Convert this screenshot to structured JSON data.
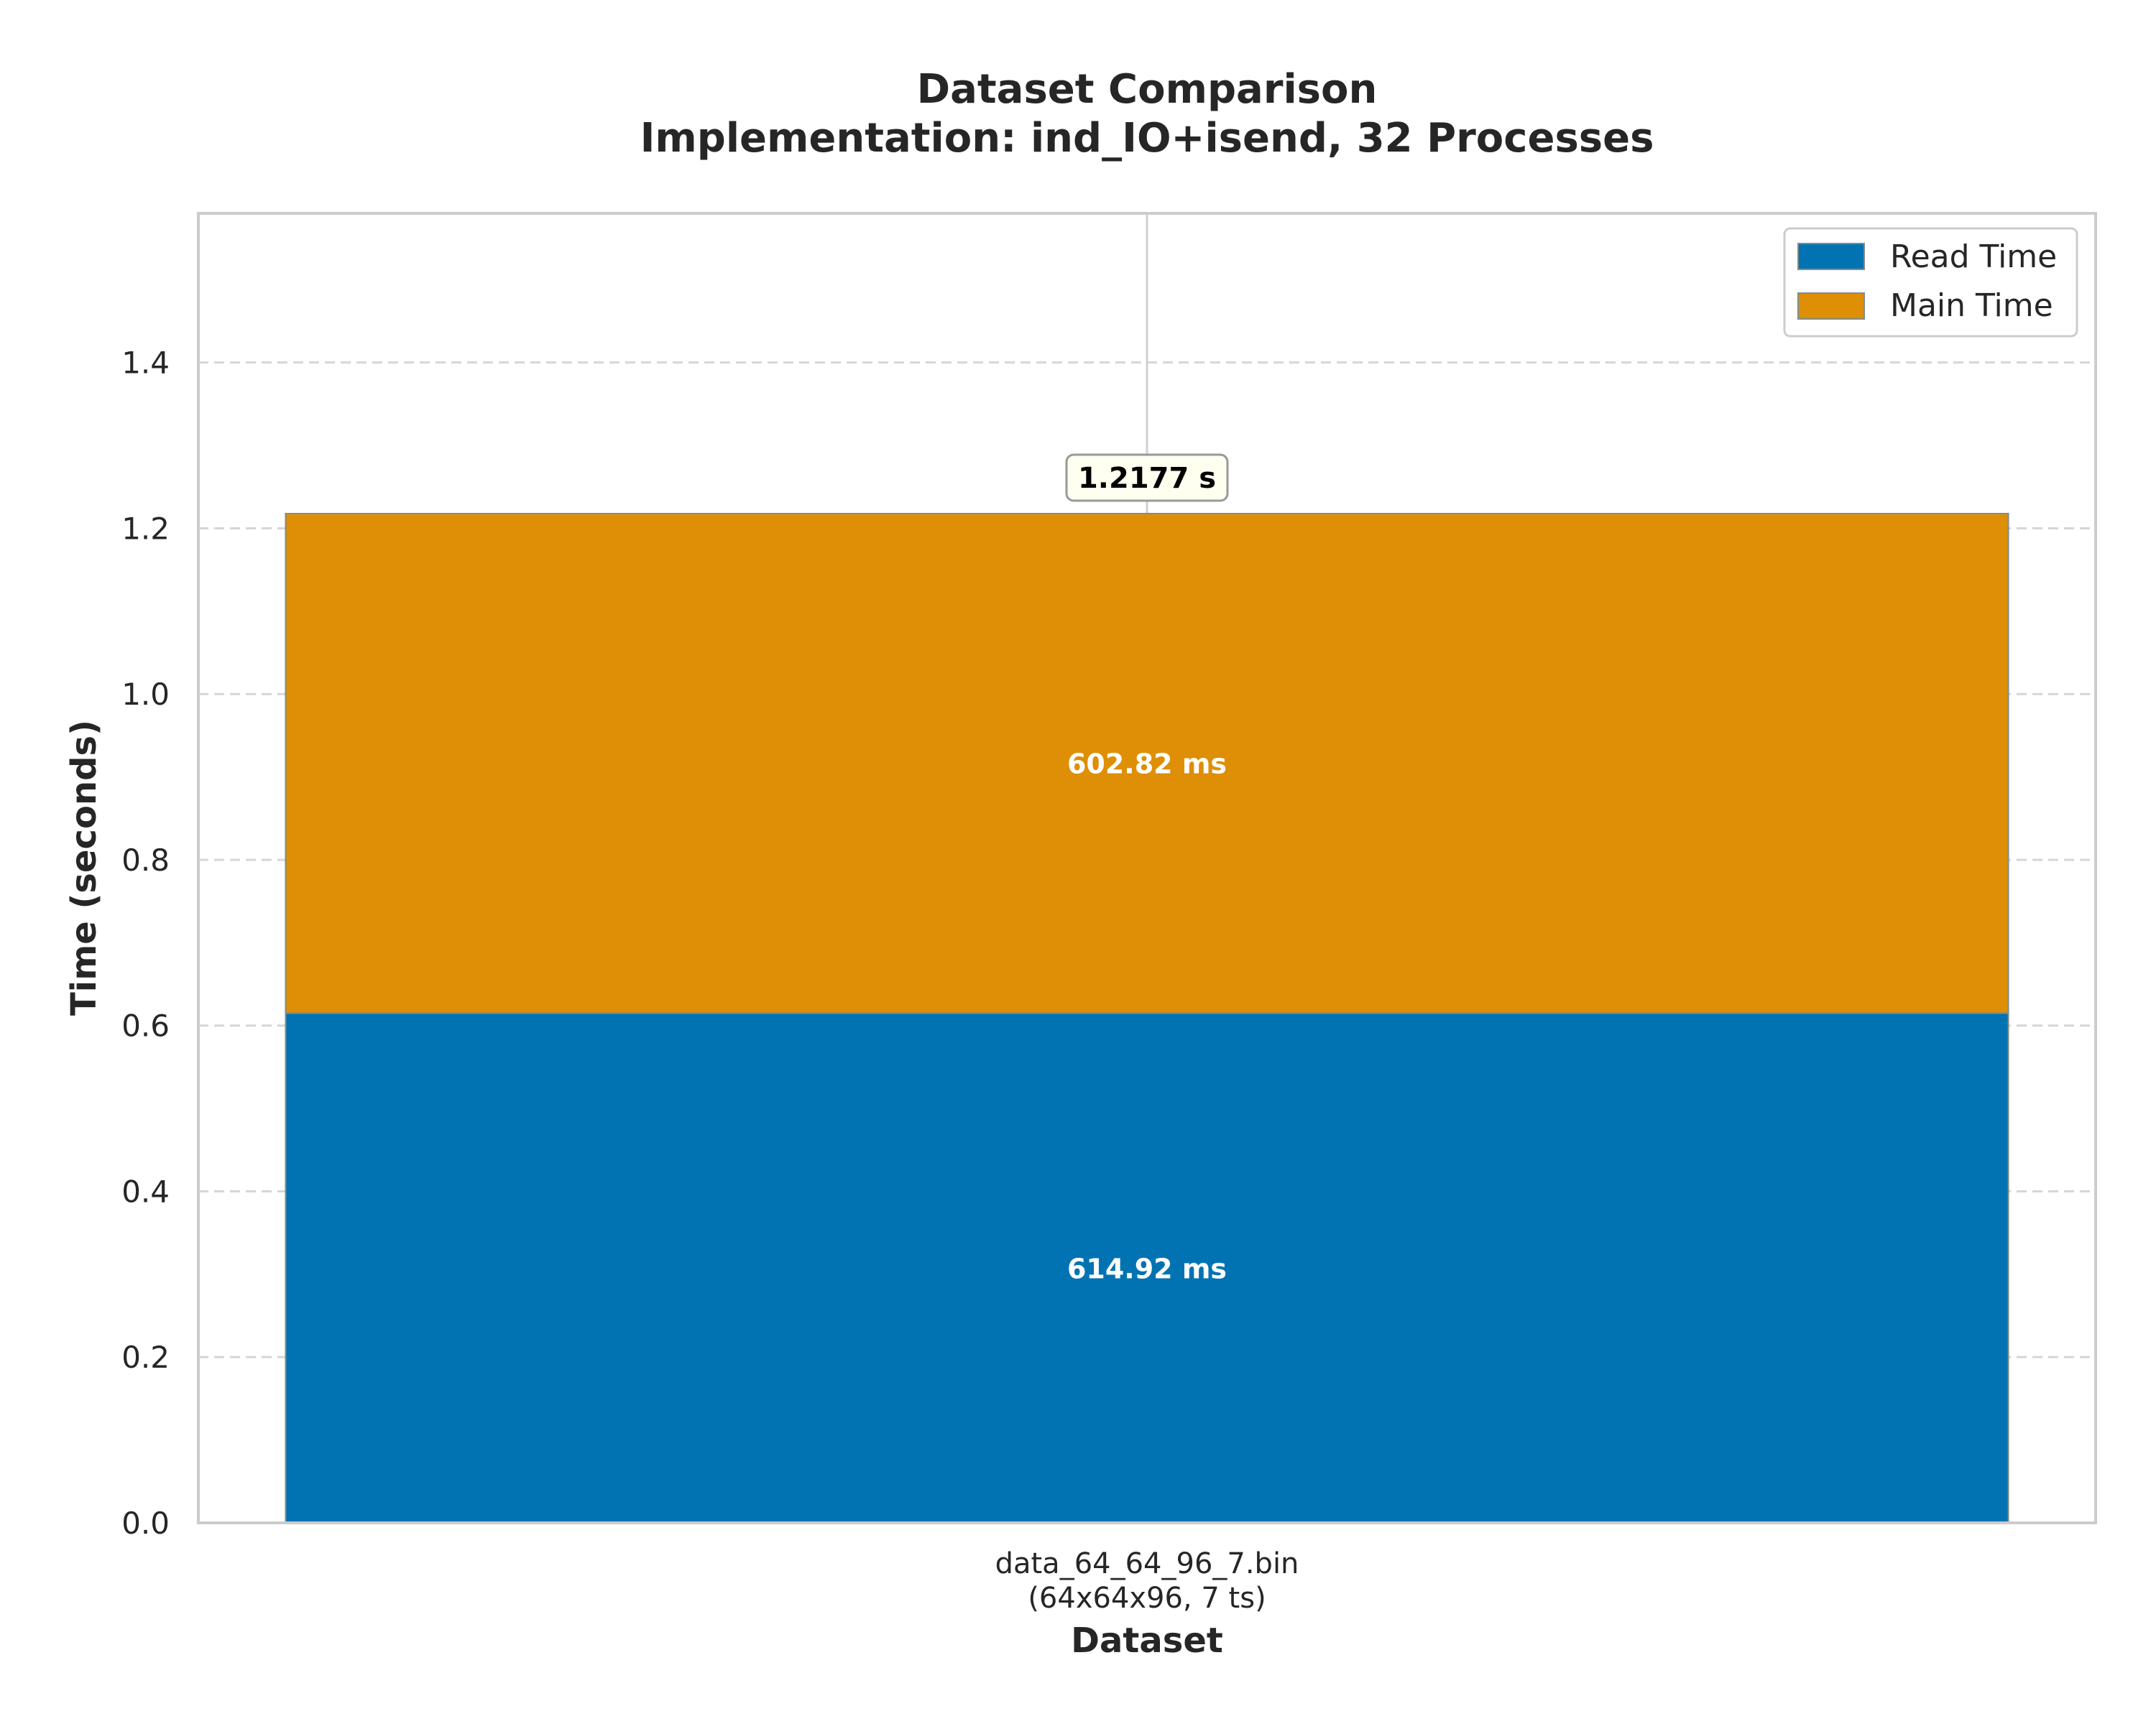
{
  "chart_data": {
    "type": "bar",
    "stacked": true,
    "title": "Dataset Comparison",
    "subtitle": "Implementation: ind_IO+isend, 32 Processes",
    "xlabel": "Dataset",
    "ylabel": "Time (seconds)",
    "ylim": [
      0,
      1.58
    ],
    "yticks": [
      "0.0",
      "0.2",
      "0.4",
      "0.6",
      "0.8",
      "1.0",
      "1.2",
      "1.4"
    ],
    "grid": "y-dashed",
    "legend_position": "top-right",
    "categories": [
      "data_64_64_96_7.bin"
    ],
    "category_sublabels": [
      "(64x64x96, 7 ts)"
    ],
    "series": [
      {
        "name": "Read Time",
        "values": [
          0.61492
        ],
        "color": "#0173b2",
        "value_labels": [
          "614.92 ms"
        ]
      },
      {
        "name": "Main Time",
        "values": [
          0.60282
        ],
        "color": "#de8f05",
        "value_labels": [
          "602.82 ms"
        ]
      }
    ],
    "totals": [
      1.2177
    ],
    "total_labels": [
      "1.2177 s"
    ]
  }
}
